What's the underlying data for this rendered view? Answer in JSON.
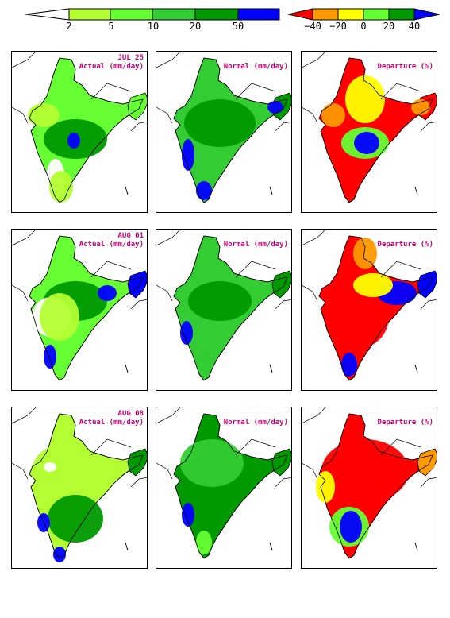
{
  "legend_left": {
    "ticks": [
      "2",
      "5",
      "10",
      "20",
      "50"
    ],
    "colors": [
      "#ffffff",
      "#b3ff33",
      "#66ff33",
      "#33cc33",
      "#009900",
      "#0000ff"
    ]
  },
  "legend_right": {
    "ticks": [
      "−40",
      "−20",
      "0",
      "20",
      "40"
    ],
    "colors": [
      "#ff0000",
      "#ff9900",
      "#ffff00",
      "#66ff33",
      "#009900",
      "#0000ff"
    ]
  },
  "rows": [
    {
      "date": "JUL 25",
      "actual_label": "Actual (mm/day)",
      "normal_label": "Normal (mm/day)",
      "departure_label": "Departure (%)"
    },
    {
      "date": "AUG 01",
      "actual_label": "Actual (mm/day)",
      "normal_label": "Normal (mm/day)",
      "departure_label": "Departure (%)"
    },
    {
      "date": "AUG 08",
      "actual_label": "Actual (mm/day)",
      "normal_label": "Normal (mm/day)",
      "departure_label": "Departure (%)"
    }
  ]
}
